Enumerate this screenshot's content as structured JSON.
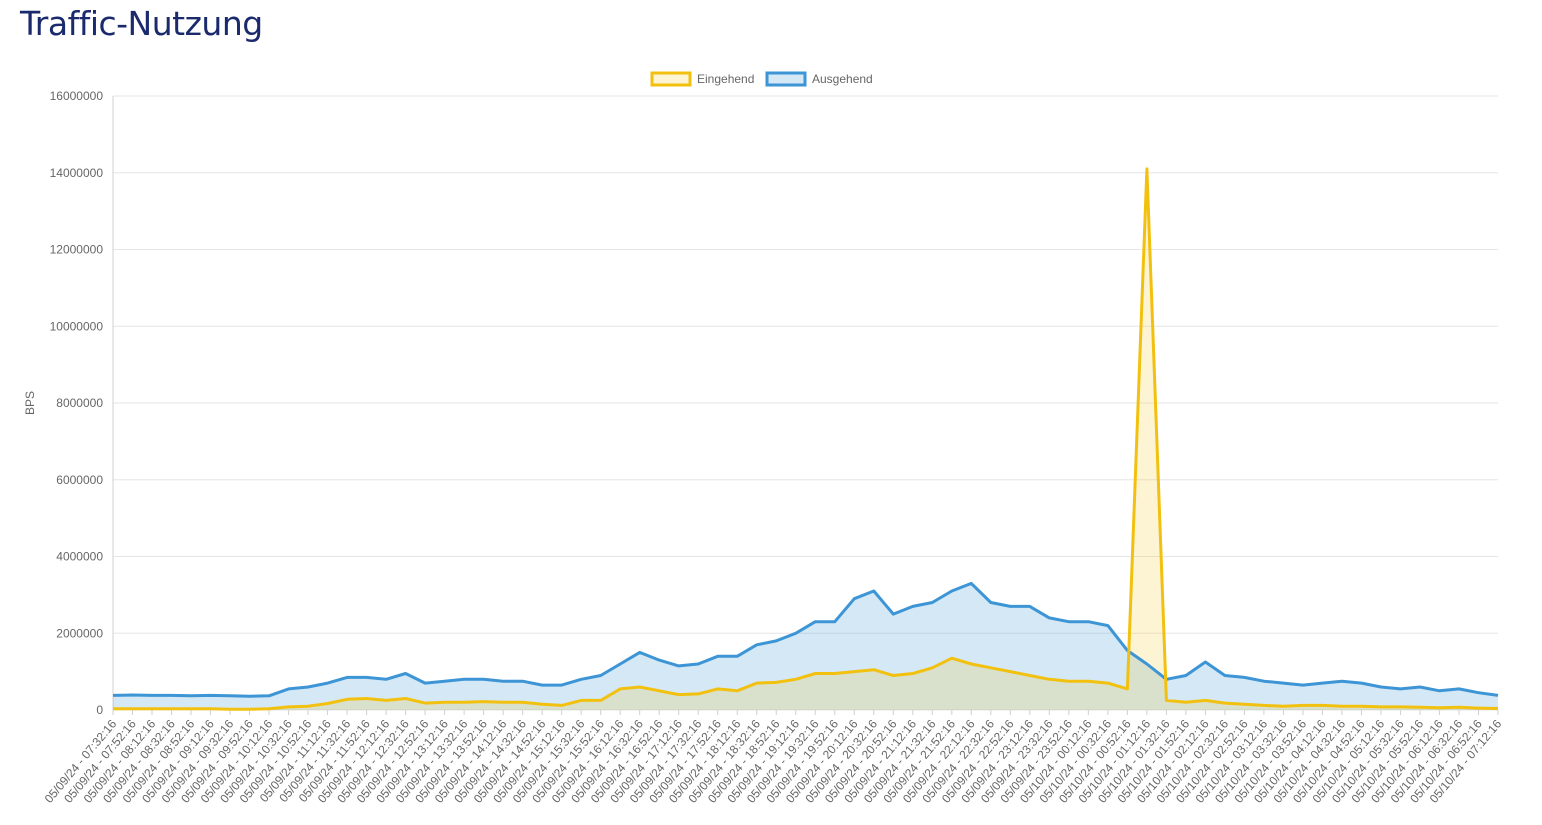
{
  "page": {
    "title": "Traffic-Nutzung"
  },
  "colors": {
    "incoming": "#f2c10f",
    "outgoing": "#3d95d6",
    "incoming_fill": "rgba(242,193,15,0.18)",
    "outgoing_fill": "rgba(61,149,214,0.22)",
    "grid": "#e6e6e6",
    "text": "#666666"
  },
  "chart_data": {
    "type": "line",
    "title": "",
    "xlabel": "",
    "ylabel": "BPS",
    "ylim": [
      0,
      16000000
    ],
    "yticks": [
      0,
      2000000,
      4000000,
      6000000,
      8000000,
      10000000,
      12000000,
      14000000,
      16000000
    ],
    "grid": true,
    "legend_position": "top",
    "categories": [
      "05/09/24 - 07:32:16",
      "05/09/24 - 07:52:16",
      "05/09/24 - 08:12:16",
      "05/09/24 - 08:32:16",
      "05/09/24 - 08:52:16",
      "05/09/24 - 09:12:16",
      "05/09/24 - 09:32:16",
      "05/09/24 - 09:52:16",
      "05/09/24 - 10:12:16",
      "05/09/24 - 10:32:16",
      "05/09/24 - 10:52:16",
      "05/09/24 - 11:12:16",
      "05/09/24 - 11:32:16",
      "05/09/24 - 11:52:16",
      "05/09/24 - 12:12:16",
      "05/09/24 - 12:32:16",
      "05/09/24 - 12:52:16",
      "05/09/24 - 13:12:16",
      "05/09/24 - 13:32:16",
      "05/09/24 - 13:52:16",
      "05/09/24 - 14:12:16",
      "05/09/24 - 14:32:16",
      "05/09/24 - 14:52:16",
      "05/09/24 - 15:12:16",
      "05/09/24 - 15:32:16",
      "05/09/24 - 15:52:16",
      "05/09/24 - 16:12:16",
      "05/09/24 - 16:32:16",
      "05/09/24 - 16:52:16",
      "05/09/24 - 17:12:16",
      "05/09/24 - 17:32:16",
      "05/09/24 - 17:52:16",
      "05/09/24 - 18:12:16",
      "05/09/24 - 18:32:16",
      "05/09/24 - 18:52:16",
      "05/09/24 - 19:12:16",
      "05/09/24 - 19:32:16",
      "05/09/24 - 19:52:16",
      "05/09/24 - 20:12:16",
      "05/09/24 - 20:32:16",
      "05/09/24 - 20:52:16",
      "05/09/24 - 21:12:16",
      "05/09/24 - 21:32:16",
      "05/09/24 - 21:52:16",
      "05/09/24 - 22:12:16",
      "05/09/24 - 22:32:16",
      "05/09/24 - 22:52:16",
      "05/09/24 - 23:12:16",
      "05/09/24 - 23:32:16",
      "05/09/24 - 23:52:16",
      "05/10/24 - 00:12:16",
      "05/10/24 - 00:32:16",
      "05/10/24 - 00:52:16",
      "05/10/24 - 01:12:16",
      "05/10/24 - 01:32:16",
      "05/10/24 - 01:52:16",
      "05/10/24 - 02:12:16",
      "05/10/24 - 02:32:16",
      "05/10/24 - 02:52:16",
      "05/10/24 - 03:12:16",
      "05/10/24 - 03:32:16",
      "05/10/24 - 03:52:16",
      "05/10/24 - 04:12:16",
      "05/10/24 - 04:32:16",
      "05/10/24 - 04:52:16",
      "05/10/24 - 05:12:16",
      "05/10/24 - 05:32:16",
      "05/10/24 - 05:52:16",
      "05/10/24 - 06:12:16",
      "05/10/24 - 06:32:16",
      "05/10/24 - 06:52:16",
      "05/10/24 - 07:12:16"
    ],
    "series": [
      {
        "name": "Eingehend",
        "values": [
          30000,
          30000,
          30000,
          30000,
          30000,
          30000,
          20000,
          20000,
          30000,
          80000,
          100000,
          170000,
          280000,
          300000,
          250000,
          300000,
          180000,
          200000,
          200000,
          220000,
          200000,
          200000,
          150000,
          120000,
          250000,
          250000,
          550000,
          600000,
          500000,
          400000,
          420000,
          550000,
          500000,
          700000,
          720000,
          800000,
          950000,
          950000,
          1000000,
          1050000,
          900000,
          950000,
          1100000,
          1350000,
          1200000,
          1100000,
          1000000,
          900000,
          800000,
          750000,
          750000,
          700000,
          550000,
          14100000,
          250000,
          200000,
          250000,
          180000,
          150000,
          120000,
          100000,
          120000,
          120000,
          100000,
          100000,
          80000,
          80000,
          70000,
          60000,
          70000,
          50000,
          40000
        ]
      },
      {
        "name": "Ausgehend",
        "values": [
          380000,
          390000,
          380000,
          380000,
          370000,
          380000,
          370000,
          360000,
          370000,
          550000,
          600000,
          700000,
          850000,
          850000,
          800000,
          950000,
          700000,
          750000,
          800000,
          800000,
          750000,
          750000,
          650000,
          650000,
          800000,
          900000,
          1200000,
          1500000,
          1300000,
          1150000,
          1200000,
          1400000,
          1400000,
          1700000,
          1800000,
          2000000,
          2300000,
          2300000,
          2900000,
          3100000,
          2500000,
          2700000,
          2800000,
          3100000,
          3300000,
          2800000,
          2700000,
          2700000,
          2400000,
          2300000,
          2300000,
          2200000,
          1550000,
          1200000,
          800000,
          900000,
          1250000,
          900000,
          850000,
          750000,
          700000,
          650000,
          700000,
          750000,
          700000,
          600000,
          550000,
          600000,
          500000,
          550000,
          450000,
          380000
        ]
      }
    ]
  }
}
